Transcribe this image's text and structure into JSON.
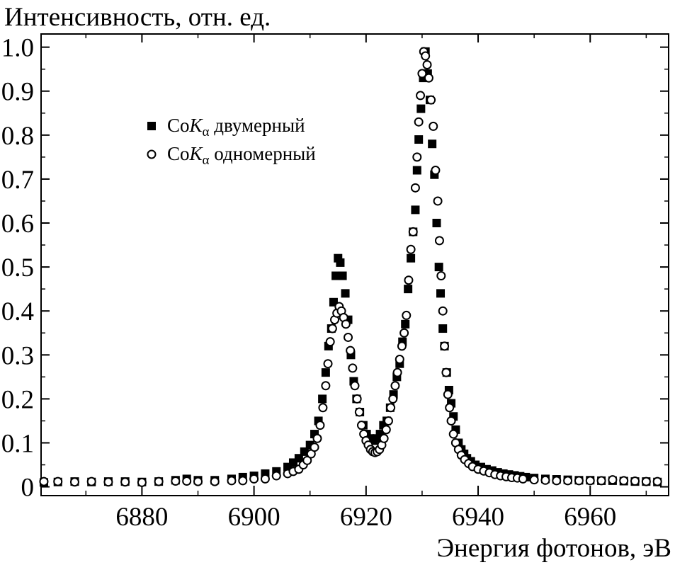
{
  "chart_data": {
    "type": "scatter",
    "ylabel": "Интенсивность, отн. ед.",
    "xlabel": "Энергия фотонов, эВ",
    "xlim": [
      6862,
      6974
    ],
    "ylim": [
      -0.02,
      1.03
    ],
    "x_ticks": [
      6880,
      6900,
      6920,
      6940,
      6960
    ],
    "x_tick_labels": [
      "6880",
      "6900",
      "6920",
      "6940",
      "6960"
    ],
    "y_ticks": [
      0,
      0.1,
      0.2,
      0.3,
      0.4,
      0.5,
      0.6,
      0.7,
      0.8,
      0.9,
      1.0
    ],
    "y_tick_labels": [
      "0",
      "0.1",
      "0.2",
      "0.3",
      "0.4",
      "0.5",
      "0.6",
      "0.7",
      "0.8",
      "0.9",
      "1.0"
    ],
    "grid": false,
    "legend_position": "upper-left",
    "series": [
      {
        "name": "CoKα двумерный",
        "legend_main": "Co",
        "legend_italic": "K",
        "legend_sub": "α",
        "legend_rest": " двумерный",
        "marker": "filled-square",
        "points": [
          [
            6862.5,
            0.01
          ],
          [
            6865,
            0.011
          ],
          [
            6868,
            0.012
          ],
          [
            6871,
            0.011
          ],
          [
            6874,
            0.012
          ],
          [
            6877,
            0.012
          ],
          [
            6880,
            0.011
          ],
          [
            6883,
            0.012
          ],
          [
            6886,
            0.015
          ],
          [
            6888,
            0.018
          ],
          [
            6890,
            0.015
          ],
          [
            6893,
            0.015
          ],
          [
            6896,
            0.018
          ],
          [
            6898,
            0.022
          ],
          [
            6900,
            0.025
          ],
          [
            6902,
            0.03
          ],
          [
            6904,
            0.035
          ],
          [
            6906,
            0.045
          ],
          [
            6907,
            0.055
          ],
          [
            6908,
            0.065
          ],
          [
            6909,
            0.08
          ],
          [
            6910,
            0.095
          ],
          [
            6910.8,
            0.12
          ],
          [
            6911.5,
            0.15
          ],
          [
            6912.2,
            0.2
          ],
          [
            6912.8,
            0.26
          ],
          [
            6913.3,
            0.32
          ],
          [
            6913.8,
            0.36
          ],
          [
            6914.2,
            0.42
          ],
          [
            6914.6,
            0.48
          ],
          [
            6915,
            0.52
          ],
          [
            6915.4,
            0.51
          ],
          [
            6915.8,
            0.48
          ],
          [
            6916.3,
            0.44
          ],
          [
            6916.8,
            0.38
          ],
          [
            6917.3,
            0.3
          ],
          [
            6917.8,
            0.24
          ],
          [
            6918.3,
            0.2
          ],
          [
            6918.9,
            0.17
          ],
          [
            6919.5,
            0.14
          ],
          [
            6920.1,
            0.12
          ],
          [
            6920.7,
            0.11
          ],
          [
            6921.3,
            0.105
          ],
          [
            6921.9,
            0.11
          ],
          [
            6922.5,
            0.12
          ],
          [
            6923.1,
            0.14
          ],
          [
            6923.7,
            0.15
          ],
          [
            6924.3,
            0.18
          ],
          [
            6924.9,
            0.21
          ],
          [
            6925.5,
            0.25
          ],
          [
            6926,
            0.28
          ],
          [
            6926.5,
            0.33
          ],
          [
            6927,
            0.37
          ],
          [
            6927.5,
            0.45
          ],
          [
            6928,
            0.52
          ],
          [
            6928.4,
            0.58
          ],
          [
            6928.8,
            0.63
          ],
          [
            6929.1,
            0.72
          ],
          [
            6929.4,
            0.79
          ],
          [
            6929.8,
            0.86
          ],
          [
            6930.2,
            0.93
          ],
          [
            6930.6,
            0.99
          ],
          [
            6931,
            0.94
          ],
          [
            6931.4,
            0.88
          ],
          [
            6931.8,
            0.78
          ],
          [
            6932.2,
            0.71
          ],
          [
            6932.6,
            0.6
          ],
          [
            6933,
            0.5
          ],
          [
            6933.3,
            0.44
          ],
          [
            6933.7,
            0.36
          ],
          [
            6934,
            0.32
          ],
          [
            6934.4,
            0.26
          ],
          [
            6934.8,
            0.22
          ],
          [
            6935.2,
            0.19
          ],
          [
            6935.6,
            0.16
          ],
          [
            6936,
            0.13
          ],
          [
            6936.5,
            0.1
          ],
          [
            6937,
            0.085
          ],
          [
            6937.5,
            0.075
          ],
          [
            6938,
            0.065
          ],
          [
            6938.7,
            0.058
          ],
          [
            6939.5,
            0.05
          ],
          [
            6940.5,
            0.045
          ],
          [
            6941.5,
            0.04
          ],
          [
            6942.5,
            0.037
          ],
          [
            6943.5,
            0.033
          ],
          [
            6944.5,
            0.03
          ],
          [
            6945.5,
            0.028
          ],
          [
            6946.5,
            0.026
          ],
          [
            6947.5,
            0.024
          ],
          [
            6948.5,
            0.022
          ],
          [
            6950,
            0.02
          ],
          [
            6952,
            0.018
          ],
          [
            6954,
            0.017
          ],
          [
            6956,
            0.016
          ],
          [
            6958,
            0.015
          ],
          [
            6960,
            0.015
          ],
          [
            6962,
            0.014
          ],
          [
            6964,
            0.014
          ],
          [
            6966,
            0.013
          ],
          [
            6968,
            0.012
          ],
          [
            6970,
            0.012
          ],
          [
            6972,
            0.011
          ]
        ]
      },
      {
        "name": "CoKα одномерный",
        "legend_main": "Co",
        "legend_italic": "K",
        "legend_sub": "α",
        "legend_rest": " одномерный",
        "marker": "open-circle",
        "points": [
          [
            6862.5,
            0.012
          ],
          [
            6865,
            0.012
          ],
          [
            6868,
            0.011
          ],
          [
            6871,
            0.012
          ],
          [
            6874,
            0.011
          ],
          [
            6877,
            0.011
          ],
          [
            6880,
            0.01
          ],
          [
            6883,
            0.012
          ],
          [
            6886,
            0.013
          ],
          [
            6888,
            0.013
          ],
          [
            6890,
            0.012
          ],
          [
            6893,
            0.012
          ],
          [
            6896,
            0.014
          ],
          [
            6898,
            0.014
          ],
          [
            6900,
            0.018
          ],
          [
            6902,
            0.018
          ],
          [
            6904,
            0.025
          ],
          [
            6906,
            0.03
          ],
          [
            6907,
            0.035
          ],
          [
            6908,
            0.04
          ],
          [
            6908.8,
            0.05
          ],
          [
            6909.5,
            0.06
          ],
          [
            6910.2,
            0.075
          ],
          [
            6910.8,
            0.09
          ],
          [
            6911.3,
            0.11
          ],
          [
            6911.8,
            0.14
          ],
          [
            6912.3,
            0.18
          ],
          [
            6912.8,
            0.23
          ],
          [
            6913.2,
            0.28
          ],
          [
            6913.6,
            0.33
          ],
          [
            6914,
            0.36
          ],
          [
            6914.4,
            0.38
          ],
          [
            6914.8,
            0.395
          ],
          [
            6915.2,
            0.41
          ],
          [
            6915.6,
            0.4
          ],
          [
            6916,
            0.385
          ],
          [
            6916.4,
            0.37
          ],
          [
            6916.8,
            0.34
          ],
          [
            6917.2,
            0.31
          ],
          [
            6917.6,
            0.27
          ],
          [
            6918,
            0.23
          ],
          [
            6918.4,
            0.2
          ],
          [
            6918.8,
            0.17
          ],
          [
            6919.2,
            0.14
          ],
          [
            6919.6,
            0.12
          ],
          [
            6920,
            0.105
          ],
          [
            6920.4,
            0.095
          ],
          [
            6920.8,
            0.085
          ],
          [
            6921.2,
            0.08
          ],
          [
            6921.6,
            0.078
          ],
          [
            6922,
            0.08
          ],
          [
            6922.4,
            0.085
          ],
          [
            6922.8,
            0.095
          ],
          [
            6923.2,
            0.11
          ],
          [
            6923.6,
            0.13
          ],
          [
            6924,
            0.15
          ],
          [
            6924.4,
            0.18
          ],
          [
            6924.8,
            0.2
          ],
          [
            6925.2,
            0.23
          ],
          [
            6925.6,
            0.26
          ],
          [
            6926,
            0.29
          ],
          [
            6926.4,
            0.32
          ],
          [
            6926.8,
            0.35
          ],
          [
            6927.2,
            0.39
          ],
          [
            6927.6,
            0.47
          ],
          [
            6928,
            0.54
          ],
          [
            6928.4,
            0.58
          ],
          [
            6928.8,
            0.68
          ],
          [
            6929.1,
            0.75
          ],
          [
            6929.4,
            0.83
          ],
          [
            6929.7,
            0.89
          ],
          [
            6930,
            0.94
          ],
          [
            6930.3,
            0.99
          ],
          [
            6930.6,
            0.98
          ],
          [
            6930.9,
            0.96
          ],
          [
            6931.2,
            0.93
          ],
          [
            6931.6,
            0.88
          ],
          [
            6932,
            0.82
          ],
          [
            6932.4,
            0.72
          ],
          [
            6932.8,
            0.65
          ],
          [
            6933.1,
            0.56
          ],
          [
            6933.4,
            0.48
          ],
          [
            6933.7,
            0.4
          ],
          [
            6934,
            0.32
          ],
          [
            6934.3,
            0.26
          ],
          [
            6934.6,
            0.21
          ],
          [
            6934.9,
            0.18
          ],
          [
            6935.2,
            0.15
          ],
          [
            6935.6,
            0.12
          ],
          [
            6936,
            0.1
          ],
          [
            6936.5,
            0.085
          ],
          [
            6937,
            0.072
          ],
          [
            6937.6,
            0.062
          ],
          [
            6938.3,
            0.053
          ],
          [
            6939,
            0.046
          ],
          [
            6940,
            0.04
          ],
          [
            6941,
            0.036
          ],
          [
            6942,
            0.032
          ],
          [
            6943,
            0.028
          ],
          [
            6944,
            0.025
          ],
          [
            6945,
            0.023
          ],
          [
            6946,
            0.021
          ],
          [
            6947,
            0.02
          ],
          [
            6948,
            0.018
          ],
          [
            6950,
            0.016
          ],
          [
            6952,
            0.015
          ],
          [
            6954,
            0.014
          ],
          [
            6956,
            0.014
          ],
          [
            6958,
            0.014
          ],
          [
            6960,
            0.014
          ],
          [
            6962,
            0.014
          ],
          [
            6964,
            0.016
          ],
          [
            6966,
            0.014
          ],
          [
            6968,
            0.013
          ],
          [
            6970,
            0.012
          ],
          [
            6972,
            0.012
          ]
        ]
      }
    ]
  }
}
